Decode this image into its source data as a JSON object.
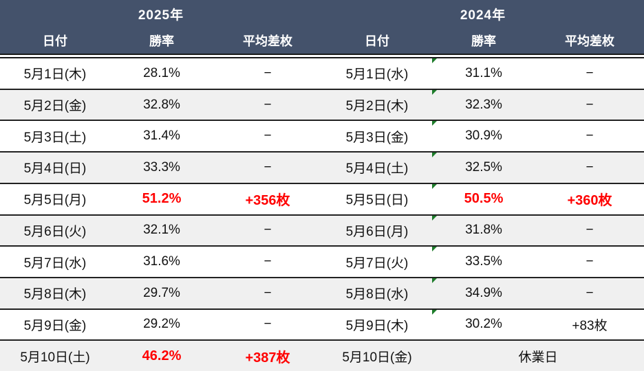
{
  "colors": {
    "header_bg": "#44526B",
    "header_text": "#FFFFFF",
    "row_bg": "#FFFFFF",
    "row_alt_bg": "#F0F0F0",
    "grid_line": "#1A1A1A",
    "highlight_text": "#FF0000",
    "flag_icon_green": "#1D7C2A"
  },
  "header": {
    "year_left": "2025年",
    "year_right": "2024年",
    "columns_left": [
      "日付",
      "勝率",
      "平均差枚"
    ],
    "columns_right": [
      "日付",
      "勝率",
      "平均差枚"
    ]
  },
  "rows": [
    {
      "l_date": "5月1日(木)",
      "l_rate": "28.1%",
      "l_diff": "−",
      "r_date": "5月1日(水)",
      "r_rate": "31.1%",
      "r_diff": "−"
    },
    {
      "l_date": "5月2日(金)",
      "l_rate": "32.8%",
      "l_diff": "−",
      "r_date": "5月2日(木)",
      "r_rate": "32.3%",
      "r_diff": "−"
    },
    {
      "l_date": "5月3日(土)",
      "l_rate": "31.4%",
      "l_diff": "−",
      "r_date": "5月3日(金)",
      "r_rate": "30.9%",
      "r_diff": "−"
    },
    {
      "l_date": "5月4日(日)",
      "l_rate": "33.3%",
      "l_diff": "−",
      "r_date": "5月4日(土)",
      "r_rate": "32.5%",
      "r_diff": "−"
    },
    {
      "l_date": "5月5日(月)",
      "l_rate": "51.2%",
      "l_diff": "+356枚",
      "r_date": "5月5日(日)",
      "r_rate": "50.5%",
      "r_diff": "+360枚"
    },
    {
      "l_date": "5月6日(火)",
      "l_rate": "32.1%",
      "l_diff": "−",
      "r_date": "5月6日(月)",
      "r_rate": "31.8%",
      "r_diff": "−"
    },
    {
      "l_date": "5月7日(水)",
      "l_rate": "31.6%",
      "l_diff": "−",
      "r_date": "5月7日(火)",
      "r_rate": "33.5%",
      "r_diff": "−"
    },
    {
      "l_date": "5月8日(木)",
      "l_rate": "29.7%",
      "l_diff": "−",
      "r_date": "5月8日(水)",
      "r_rate": "34.9%",
      "r_diff": "−"
    },
    {
      "l_date": "5月9日(金)",
      "l_rate": "29.2%",
      "l_diff": "−",
      "r_date": "5月9日(木)",
      "r_rate": "30.2%",
      "r_diff": "+83枚"
    },
    {
      "l_date": "5月10日(土)",
      "l_rate": "46.2%",
      "l_diff": "+387枚",
      "r_date": "5月10日(金)",
      "r_closed": "休業日"
    }
  ]
}
